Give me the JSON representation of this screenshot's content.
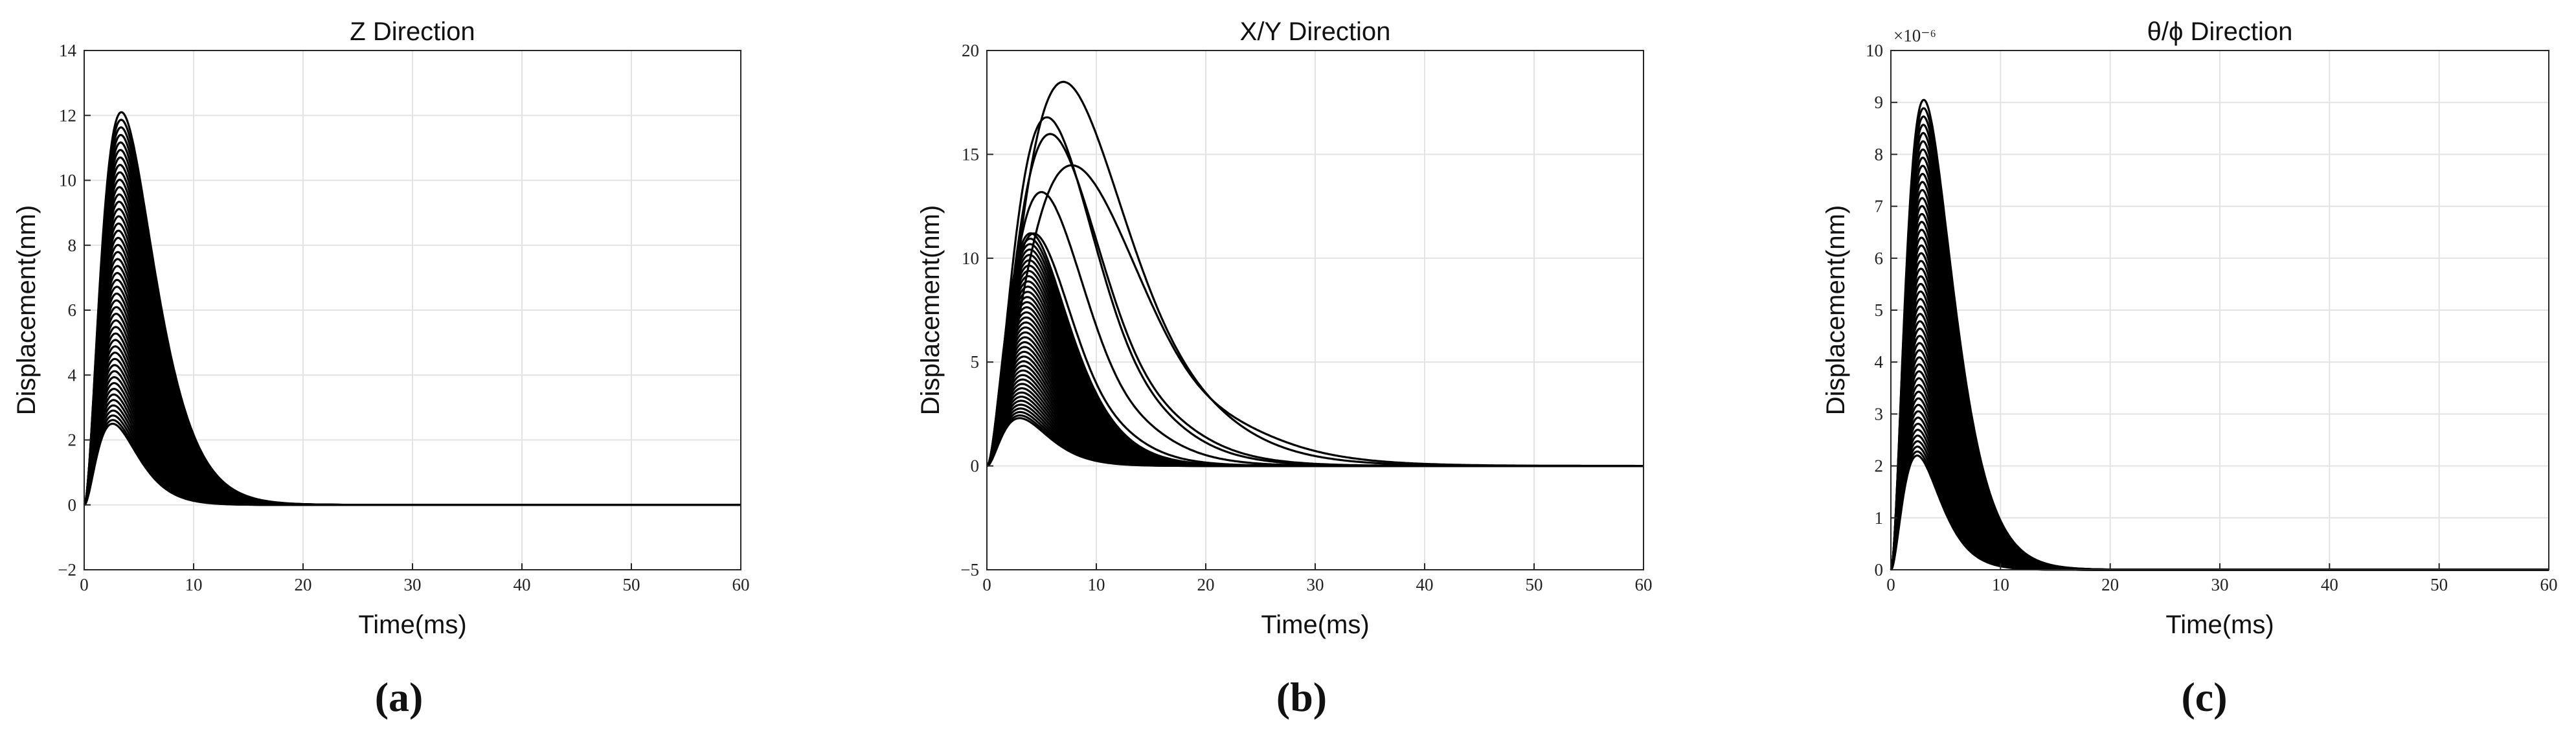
{
  "chart_data": [
    {
      "type": "line",
      "panel_label": "(a)",
      "title": "Z Direction",
      "xlabel": "Time(ms)",
      "ylabel": "Displacement(nm)",
      "xlim": [
        0,
        60
      ],
      "ylim": [
        -2,
        14
      ],
      "xticks": [
        0,
        10,
        20,
        30,
        40,
        50,
        60
      ],
      "yticks": [
        -2,
        0,
        2,
        4,
        6,
        8,
        10,
        12,
        14
      ],
      "grid": true,
      "legend": "none",
      "line_color": "#000000",
      "series_family": {
        "description_shape": "rise-and-decay pulses",
        "count": 48,
        "peak_time_range_ms": [
          2.6,
          3.4
        ],
        "peak_value_range": [
          2.5,
          12.1
        ],
        "decays_to": 0
      }
    },
    {
      "type": "line",
      "panel_label": "(b)",
      "title": "X/Y Direction",
      "xlabel": "Time(ms)",
      "ylabel": "Displacement(nm)",
      "xlim": [
        0,
        60
      ],
      "ylim": [
        -5,
        20
      ],
      "xticks": [
        0,
        10,
        20,
        30,
        40,
        50,
        60
      ],
      "yticks": [
        -5,
        0,
        5,
        10,
        15,
        20
      ],
      "grid": true,
      "legend": "none",
      "line_color": "#000000",
      "series_family": {
        "count": 40,
        "peak_time_range_ms": [
          3.0,
          4.0
        ],
        "peak_value_range": [
          2.3,
          11.2
        ],
        "decays_to": 0
      },
      "highlighted_series": [
        {
          "peak_time": 7.0,
          "peak": 18.5,
          "undershoot": -0.3
        },
        {
          "peak_time": 5.5,
          "peak": 16.8,
          "undershoot": -0.5
        },
        {
          "peak_time": 5.8,
          "peak": 16.0,
          "undershoot": -0.6
        },
        {
          "peak_time": 7.8,
          "peak": 14.5,
          "undershoot": -0.8
        },
        {
          "peak_time": 5.0,
          "peak": 13.2,
          "undershoot": -0.5
        },
        {
          "peak_time": 4.3,
          "peak": 11.2,
          "undershoot": -0.3
        }
      ]
    },
    {
      "type": "line",
      "panel_label": "(c)",
      "title": "θ/ϕ Direction",
      "xlabel": "Time(ms)",
      "ylabel": "Displacement(nm)",
      "y_multiplier": "×10⁻⁶",
      "xlim": [
        0,
        60
      ],
      "ylim": [
        0,
        10
      ],
      "xticks": [
        0,
        10,
        20,
        30,
        40,
        50,
        60
      ],
      "yticks": [
        0,
        1,
        2,
        3,
        4,
        5,
        6,
        7,
        8,
        9,
        10
      ],
      "grid": true,
      "legend": "none",
      "line_color": "#000000",
      "series_family": {
        "count": 50,
        "peak_time_range_ms": [
          2.4,
          3.0
        ],
        "peak_value_range": [
          2.2,
          9.05
        ],
        "decays_to": 0
      }
    }
  ]
}
